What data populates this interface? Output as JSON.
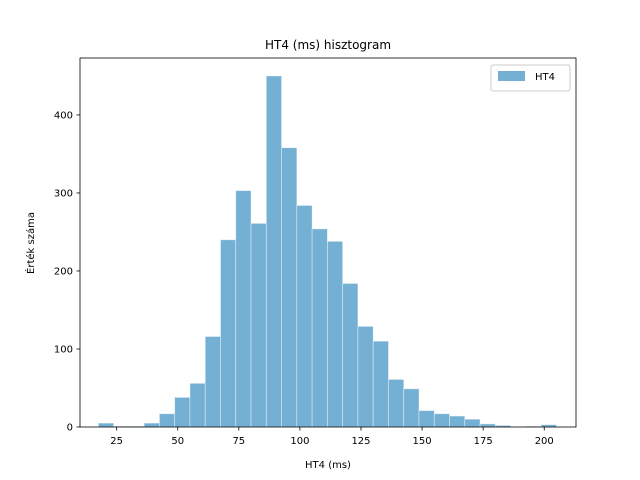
{
  "chart_data": {
    "type": "bar",
    "title": "HT4 (ms) hisztogram",
    "xlabel": "HT4 (ms)",
    "ylabel": "Érték száma",
    "xlim": [
      10,
      213
    ],
    "ylim": [
      0,
      473
    ],
    "xticks": [
      25,
      50,
      75,
      100,
      125,
      150,
      175,
      200
    ],
    "yticks": [
      0,
      100,
      200,
      300,
      400
    ],
    "legend": {
      "label": "HT4",
      "placement": "top-right"
    },
    "bar_color": "#74afd4",
    "bins": [
      {
        "start": 17.5,
        "end": 23.75,
        "count": 5
      },
      {
        "start": 23.75,
        "end": 30.0,
        "count": 1
      },
      {
        "start": 30.0,
        "end": 36.25,
        "count": 1
      },
      {
        "start": 36.25,
        "end": 42.5,
        "count": 5
      },
      {
        "start": 42.5,
        "end": 48.75,
        "count": 17
      },
      {
        "start": 48.75,
        "end": 55.0,
        "count": 38
      },
      {
        "start": 55.0,
        "end": 61.25,
        "count": 56
      },
      {
        "start": 61.25,
        "end": 67.5,
        "count": 116
      },
      {
        "start": 67.5,
        "end": 73.75,
        "count": 240
      },
      {
        "start": 73.75,
        "end": 80.0,
        "count": 303
      },
      {
        "start": 80.0,
        "end": 86.25,
        "count": 261
      },
      {
        "start": 86.25,
        "end": 92.5,
        "count": 450
      },
      {
        "start": 92.5,
        "end": 98.75,
        "count": 358
      },
      {
        "start": 98.75,
        "end": 105.0,
        "count": 284
      },
      {
        "start": 105.0,
        "end": 111.25,
        "count": 254
      },
      {
        "start": 111.25,
        "end": 117.5,
        "count": 238
      },
      {
        "start": 117.5,
        "end": 123.75,
        "count": 184
      },
      {
        "start": 123.75,
        "end": 130.0,
        "count": 129
      },
      {
        "start": 130.0,
        "end": 136.25,
        "count": 110
      },
      {
        "start": 136.25,
        "end": 142.5,
        "count": 61
      },
      {
        "start": 142.5,
        "end": 148.75,
        "count": 49
      },
      {
        "start": 148.75,
        "end": 155.0,
        "count": 21
      },
      {
        "start": 155.0,
        "end": 161.25,
        "count": 17
      },
      {
        "start": 161.25,
        "end": 167.5,
        "count": 14
      },
      {
        "start": 167.5,
        "end": 173.75,
        "count": 10
      },
      {
        "start": 173.75,
        "end": 180.0,
        "count": 4
      },
      {
        "start": 180.0,
        "end": 186.25,
        "count": 2
      },
      {
        "start": 186.25,
        "end": 192.5,
        "count": 0
      },
      {
        "start": 192.5,
        "end": 198.75,
        "count": 1
      },
      {
        "start": 198.75,
        "end": 205.0,
        "count": 3
      }
    ]
  }
}
